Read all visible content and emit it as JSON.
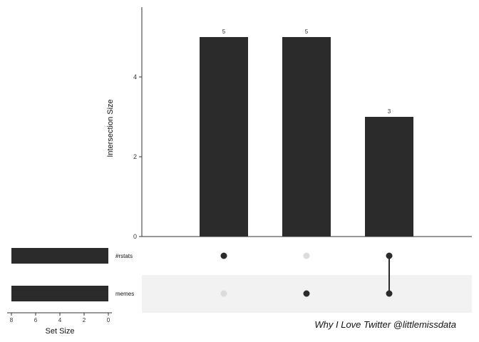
{
  "chart_data": {
    "type": "upset",
    "sets": [
      "#rstats",
      "memes"
    ],
    "set_sizes": [
      8,
      8
    ],
    "intersections": [
      {
        "members": [
          "#rstats"
        ],
        "size": 5
      },
      {
        "members": [
          "memes"
        ],
        "size": 5
      },
      {
        "members": [
          "#rstats",
          "memes"
        ],
        "size": 3
      }
    ],
    "ylabel": "Intersection Size",
    "ylim": [
      0,
      5.8
    ],
    "y_ticks": [
      0,
      2,
      4
    ],
    "set_size_label": "Set Size",
    "set_size_ticks": [
      8,
      6,
      4,
      2,
      0
    ],
    "set_size_max": 8,
    "bar_color": "#2b2b2b",
    "dot_inactive_color": "#dcdcdc",
    "shade_color": "#f2f2f2"
  },
  "caption": "Why I Love Twitter @littlemissdata"
}
